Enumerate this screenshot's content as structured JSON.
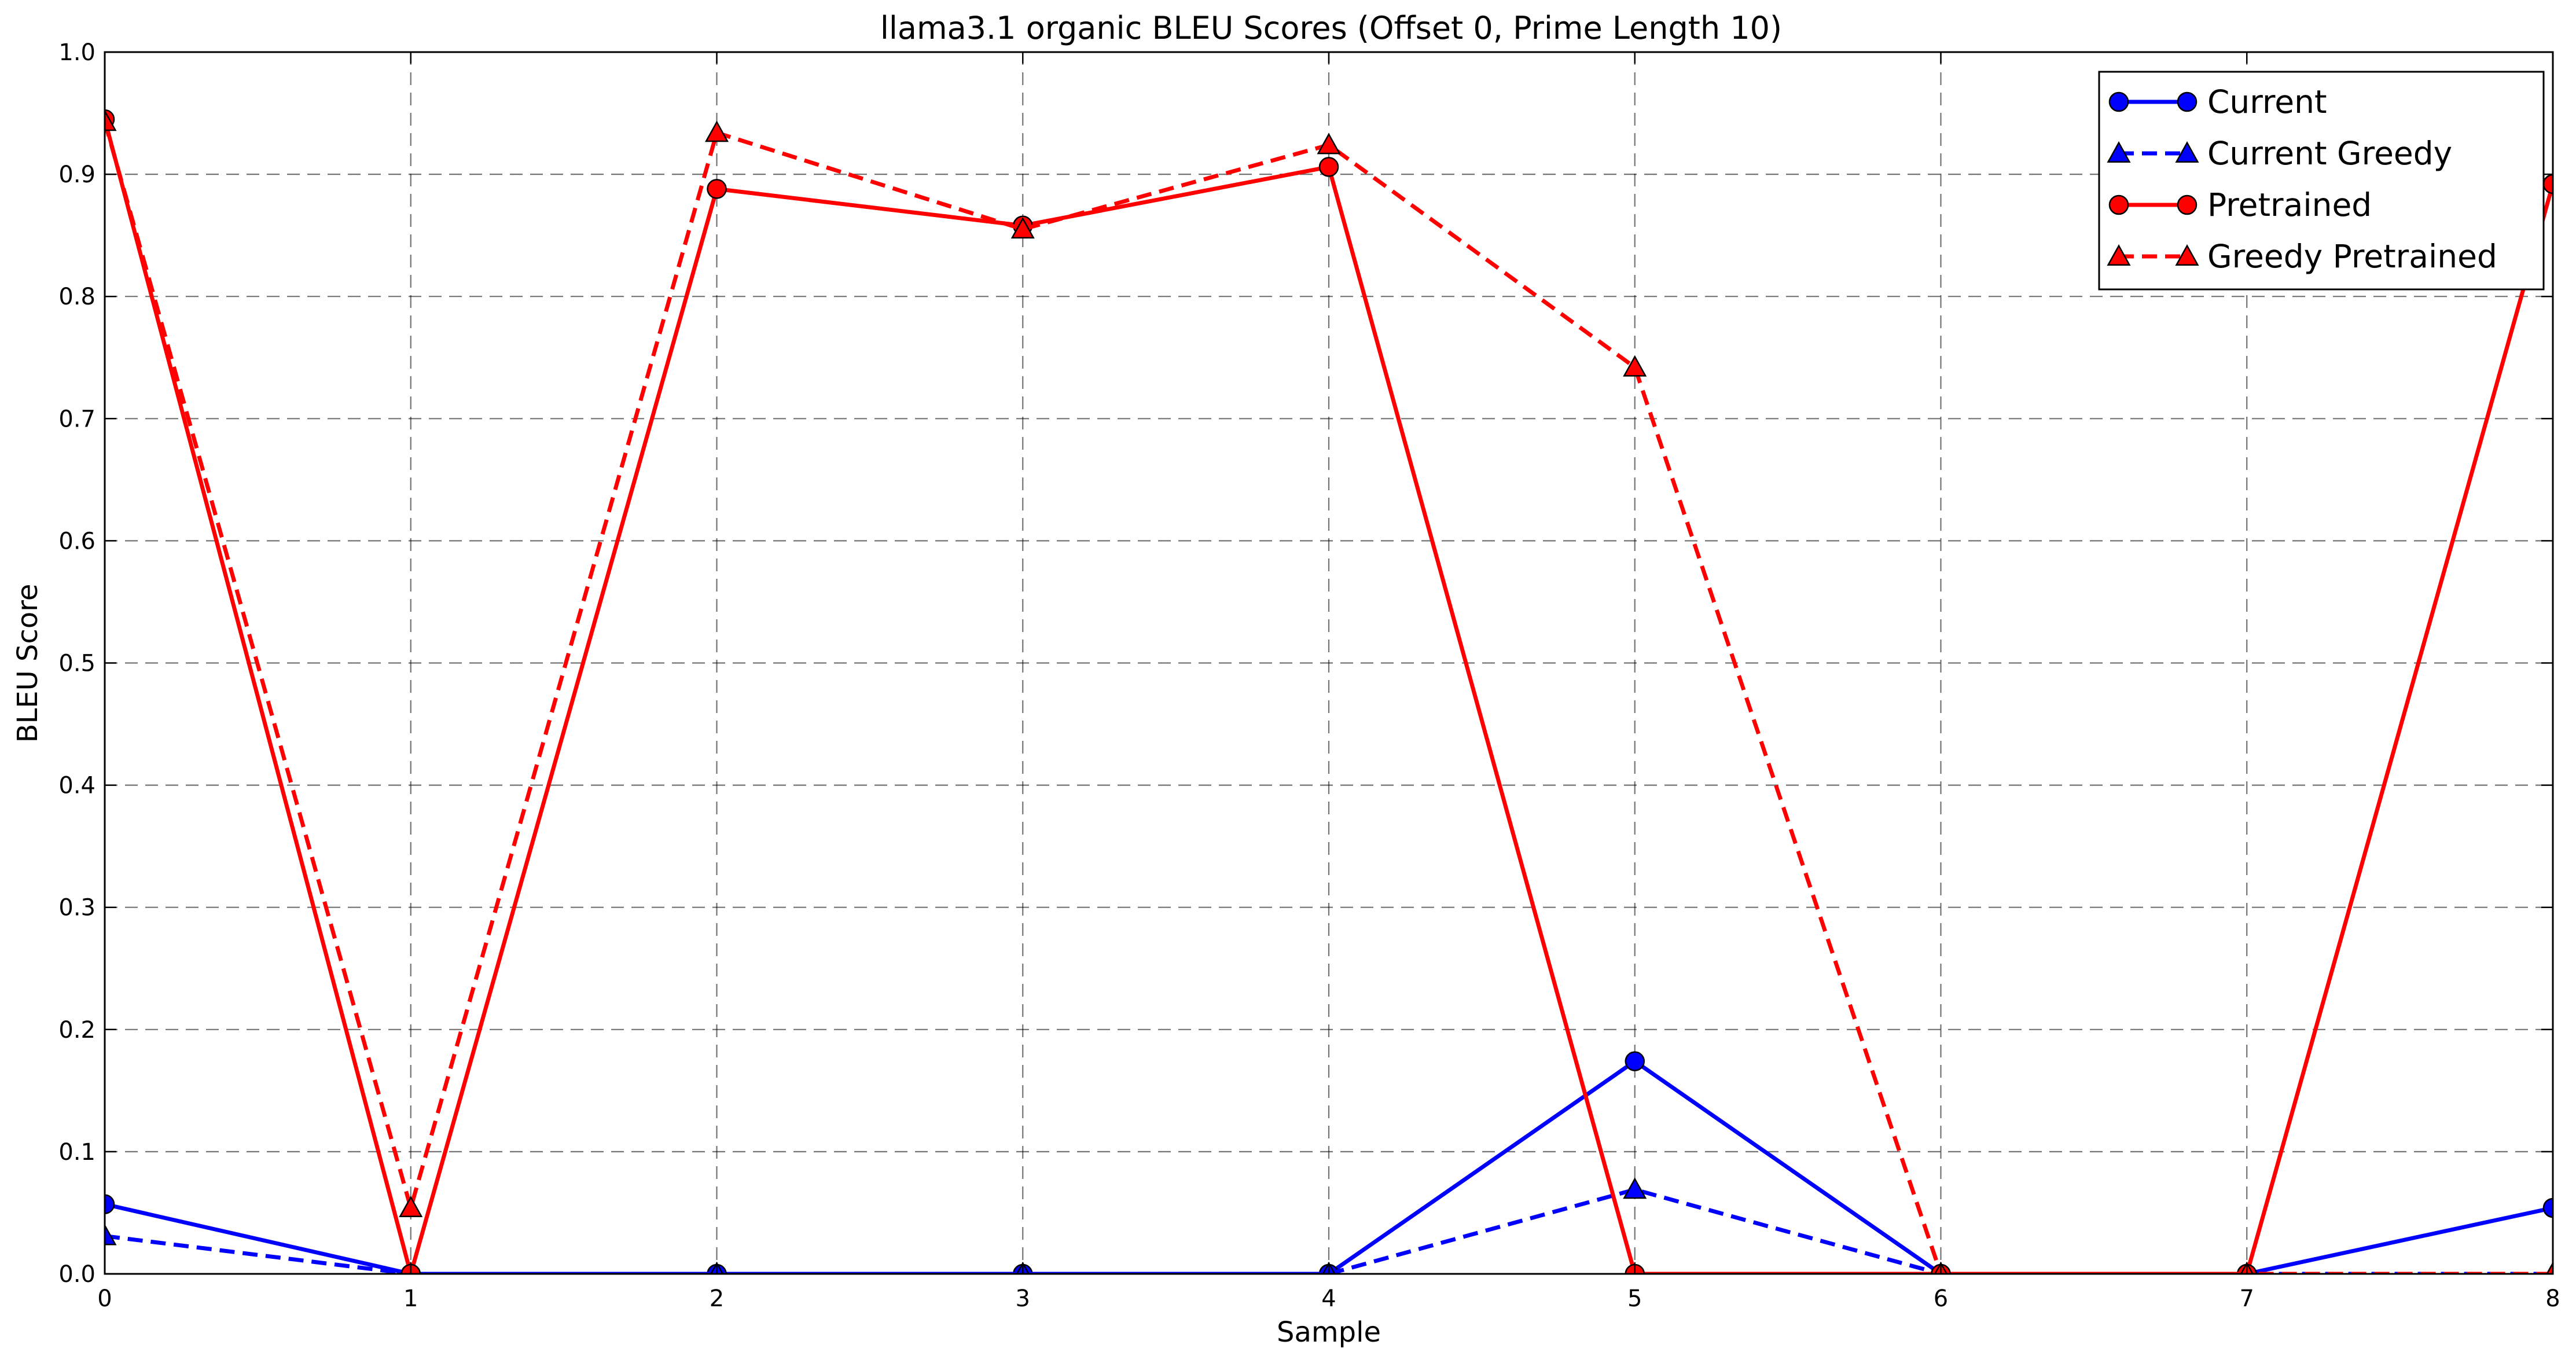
{
  "chart_data": {
    "type": "line",
    "title": "llama3.1 organic BLEU Scores (Offset 0, Prime Length 10)",
    "xlabel": "Sample",
    "ylabel": "BLEU Score",
    "x": [
      0,
      1,
      2,
      3,
      4,
      5,
      6,
      7,
      8
    ],
    "xlim": [
      0,
      8
    ],
    "ylim": [
      0,
      1.0
    ],
    "xticks": [
      "0",
      "1",
      "2",
      "3",
      "4",
      "5",
      "6",
      "7",
      "8"
    ],
    "yticks": [
      "0.0",
      "0.1",
      "0.2",
      "0.3",
      "0.4",
      "0.5",
      "0.6",
      "0.7",
      "0.8",
      "0.9",
      "1.0"
    ],
    "grid": true,
    "legend_position": "top-right",
    "series": [
      {
        "name": "Current",
        "color": "#0000ff",
        "linestyle": "solid",
        "marker": "circle",
        "values": [
          0.057,
          0.0,
          0.0,
          0.0,
          0.0,
          0.174,
          0.0,
          0.0,
          0.054
        ]
      },
      {
        "name": "Current Greedy",
        "color": "#0000ff",
        "linestyle": "dashed",
        "marker": "triangle",
        "values": [
          0.031,
          0.0,
          0.0,
          0.0,
          0.0,
          0.069,
          0.0,
          0.0,
          0.0
        ]
      },
      {
        "name": "Pretrained",
        "color": "#ff0000",
        "linestyle": "solid",
        "marker": "circle",
        "values": [
          0.945,
          0.0,
          0.888,
          0.858,
          0.906,
          0.0,
          0.0,
          0.0,
          0.892
        ]
      },
      {
        "name": "Greedy Pretrained",
        "color": "#ff0000",
        "linestyle": "dashed",
        "marker": "triangle",
        "values": [
          0.943,
          0.054,
          0.934,
          0.855,
          0.924,
          0.742,
          0.0,
          0.0,
          0.0
        ]
      }
    ]
  }
}
